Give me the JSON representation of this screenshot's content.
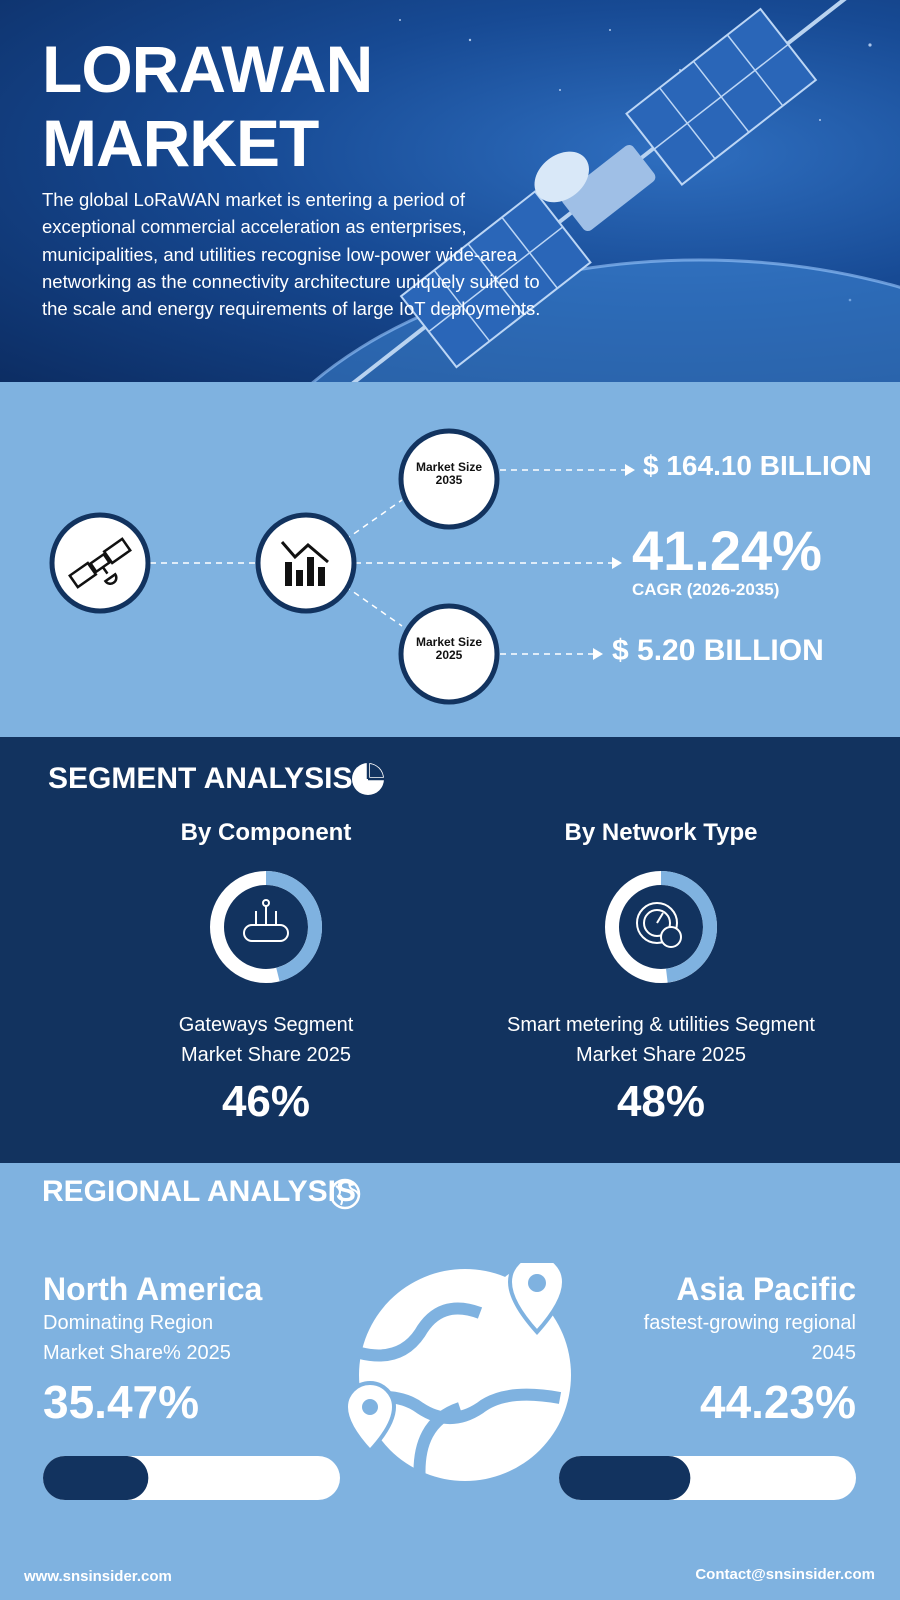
{
  "hero": {
    "title_lines": [
      "LORAWAN",
      "MARKET"
    ],
    "description": "The global LoRaWAN market is entering a period of exceptional commercial acceleration as enterprises, municipalities, and utilities recognise low-power wide-area networking as the connectivity architecture uniquely suited to the scale and energy requirements of large IoT deployments."
  },
  "stats": {
    "size_2035": {
      "label_lines": [
        "Market Size",
        "2035"
      ],
      "value": "$ 164.10 BILLION"
    },
    "cagr": {
      "value": "41.24%",
      "label": "CAGR (2026-2035)"
    },
    "size_2025": {
      "label_lines": [
        "Market Size",
        "2025"
      ],
      "value": "$ 5.20 BILLION"
    }
  },
  "segment_analysis": {
    "title": "SEGMENT ANALYSIS",
    "segments": [
      {
        "title": "By Component",
        "label_lines": [
          "Gateways Segment",
          "Market Share 2025"
        ],
        "value": 46,
        "value_label": "46%"
      },
      {
        "title": "By Network Type",
        "label_lines": [
          "Smart metering & utilities Segment",
          "Market Share 2025"
        ],
        "value": 48,
        "value_label": "48%"
      }
    ]
  },
  "regional_analysis": {
    "title": "REGIONAL ANALYSIS",
    "regions": [
      {
        "name": "North America",
        "label_lines": [
          "Dominating Region",
          "Market Share% 2025"
        ],
        "value": 35.47,
        "value_label": "35.47%"
      },
      {
        "name": "Asia Pacific",
        "label_lines": [
          "fastest-growing regional",
          "2045"
        ],
        "value": 44.23,
        "value_label": "44.23%"
      }
    ]
  },
  "footer": {
    "website": "www.snsinsider.com",
    "contact": "Contact@snsinsider.com"
  }
}
